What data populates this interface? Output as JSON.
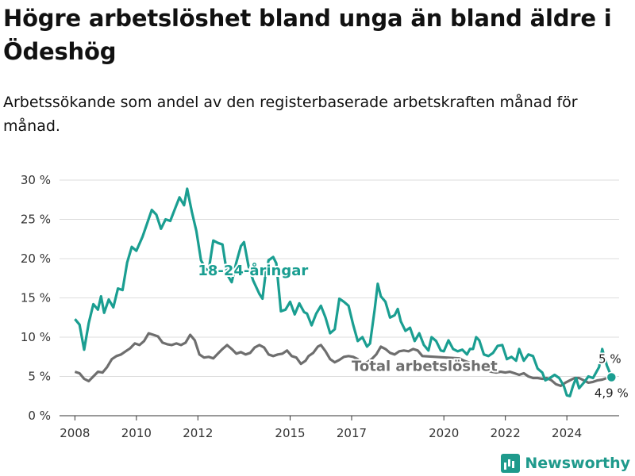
{
  "title": "Högre arbetslöshet bland unga än bland äldre i Ödeshög",
  "subtitle": "Arbetssökande som andel av den registerbaserade arbetskraften månad för månad.",
  "brand": "Newsworthy",
  "colors": {
    "young": "#1a9e91",
    "total": "#6e6e6e",
    "brand": "#1f9a8c"
  },
  "chart_data": {
    "type": "line",
    "ylim": [
      0,
      30
    ],
    "xlim": [
      2007.5,
      2025.7
    ],
    "yticks": [
      0,
      5,
      10,
      15,
      20,
      25,
      30
    ],
    "ytick_labels": [
      "0 %",
      "5 %",
      "10 %",
      "15 %",
      "20 %",
      "25 %",
      "30 %"
    ],
    "xticks": [
      2008,
      2010,
      2012,
      2015,
      2017,
      2020,
      2022,
      2024
    ],
    "xtick_labels": [
      "2008",
      "2010",
      "2012",
      "2015",
      "2017",
      "2020",
      "2022",
      "2024"
    ],
    "grid": true,
    "series": [
      {
        "name": "18-24-åringar",
        "points": [
          [
            2008.0,
            12.3
          ],
          [
            2008.15,
            11.6
          ],
          [
            2008.3,
            8.4
          ],
          [
            2008.45,
            11.8
          ],
          [
            2008.6,
            14.2
          ],
          [
            2008.75,
            13.5
          ],
          [
            2008.85,
            15.2
          ],
          [
            2008.95,
            13.1
          ],
          [
            2009.1,
            14.8
          ],
          [
            2009.25,
            13.8
          ],
          [
            2009.4,
            16.2
          ],
          [
            2009.55,
            16.0
          ],
          [
            2009.7,
            19.5
          ],
          [
            2009.85,
            21.5
          ],
          [
            2010.0,
            21.0
          ],
          [
            2010.2,
            22.8
          ],
          [
            2010.35,
            24.5
          ],
          [
            2010.5,
            26.2
          ],
          [
            2010.65,
            25.6
          ],
          [
            2010.8,
            23.8
          ],
          [
            2010.95,
            25.0
          ],
          [
            2011.1,
            24.8
          ],
          [
            2011.25,
            26.3
          ],
          [
            2011.4,
            27.8
          ],
          [
            2011.55,
            26.8
          ],
          [
            2011.65,
            28.9
          ],
          [
            2011.8,
            26.0
          ],
          [
            2011.95,
            23.5
          ],
          [
            2012.1,
            19.8
          ],
          [
            2012.25,
            18.7
          ],
          [
            2012.35,
            18.5
          ],
          [
            2012.5,
            22.3
          ],
          [
            2012.65,
            22.0
          ],
          [
            2012.8,
            21.8
          ],
          [
            2012.95,
            18.0
          ],
          [
            2013.1,
            17.0
          ],
          [
            2013.25,
            19.5
          ],
          [
            2013.4,
            21.6
          ],
          [
            2013.5,
            22.1
          ],
          [
            2013.65,
            19.0
          ],
          [
            2013.8,
            17.2
          ],
          [
            2014.0,
            15.5
          ],
          [
            2014.1,
            14.9
          ],
          [
            2014.2,
            18.0
          ],
          [
            2014.3,
            19.8
          ],
          [
            2014.45,
            20.2
          ],
          [
            2014.55,
            19.4
          ],
          [
            2014.7,
            13.3
          ],
          [
            2014.85,
            13.5
          ],
          [
            2015.0,
            14.5
          ],
          [
            2015.15,
            12.9
          ],
          [
            2015.3,
            14.3
          ],
          [
            2015.45,
            13.2
          ],
          [
            2015.55,
            13.0
          ],
          [
            2015.7,
            11.5
          ],
          [
            2015.85,
            13.0
          ],
          [
            2016.0,
            14.0
          ],
          [
            2016.15,
            12.5
          ],
          [
            2016.3,
            10.5
          ],
          [
            2016.45,
            11.0
          ],
          [
            2016.6,
            14.9
          ],
          [
            2016.75,
            14.5
          ],
          [
            2016.9,
            14.0
          ],
          [
            2017.05,
            11.6
          ],
          [
            2017.2,
            9.5
          ],
          [
            2017.35,
            10.0
          ],
          [
            2017.5,
            8.8
          ],
          [
            2017.6,
            9.2
          ],
          [
            2017.75,
            13.5
          ],
          [
            2017.85,
            16.8
          ],
          [
            2017.95,
            15.2
          ],
          [
            2018.1,
            14.5
          ],
          [
            2018.25,
            12.5
          ],
          [
            2018.4,
            12.8
          ],
          [
            2018.5,
            13.6
          ],
          [
            2018.6,
            12.0
          ],
          [
            2018.75,
            10.8
          ],
          [
            2018.9,
            11.2
          ],
          [
            2019.05,
            9.5
          ],
          [
            2019.2,
            10.5
          ],
          [
            2019.35,
            9.0
          ],
          [
            2019.5,
            8.3
          ],
          [
            2019.6,
            10.0
          ],
          [
            2019.75,
            9.5
          ],
          [
            2019.9,
            8.3
          ],
          [
            2020.0,
            8.2
          ],
          [
            2020.15,
            9.6
          ],
          [
            2020.3,
            8.5
          ],
          [
            2020.45,
            8.2
          ],
          [
            2020.6,
            8.4
          ],
          [
            2020.75,
            7.8
          ],
          [
            2020.85,
            8.5
          ],
          [
            2020.95,
            8.5
          ],
          [
            2021.05,
            10.0
          ],
          [
            2021.15,
            9.6
          ],
          [
            2021.3,
            7.8
          ],
          [
            2021.45,
            7.6
          ],
          [
            2021.6,
            8.0
          ],
          [
            2021.75,
            8.9
          ],
          [
            2021.9,
            9.0
          ],
          [
            2022.05,
            7.2
          ],
          [
            2022.2,
            7.5
          ],
          [
            2022.35,
            7.0
          ],
          [
            2022.45,
            8.5
          ],
          [
            2022.6,
            7.0
          ],
          [
            2022.75,
            7.8
          ],
          [
            2022.9,
            7.6
          ],
          [
            2023.05,
            6.0
          ],
          [
            2023.2,
            5.5
          ],
          [
            2023.3,
            4.5
          ],
          [
            2023.45,
            4.8
          ],
          [
            2023.6,
            5.2
          ],
          [
            2023.75,
            4.8
          ],
          [
            2023.9,
            3.8
          ],
          [
            2024.0,
            2.6
          ],
          [
            2024.1,
            2.5
          ],
          [
            2024.2,
            3.8
          ],
          [
            2024.3,
            4.8
          ],
          [
            2024.4,
            3.5
          ],
          [
            2024.55,
            4.2
          ],
          [
            2024.7,
            5.0
          ],
          [
            2024.85,
            4.8
          ],
          [
            2024.95,
            5.5
          ],
          [
            2025.05,
            6.2
          ],
          [
            2025.15,
            8.5
          ],
          [
            2025.3,
            6.4
          ],
          [
            2025.45,
            5.0
          ]
        ],
        "end_label": "5 %"
      },
      {
        "name": "Total arbetslöshet",
        "points": [
          [
            2008.0,
            5.6
          ],
          [
            2008.15,
            5.4
          ],
          [
            2008.3,
            4.7
          ],
          [
            2008.45,
            4.4
          ],
          [
            2008.6,
            5.0
          ],
          [
            2008.75,
            5.6
          ],
          [
            2008.9,
            5.5
          ],
          [
            2009.05,
            6.2
          ],
          [
            2009.2,
            7.2
          ],
          [
            2009.35,
            7.6
          ],
          [
            2009.5,
            7.8
          ],
          [
            2009.65,
            8.2
          ],
          [
            2009.8,
            8.6
          ],
          [
            2009.95,
            9.2
          ],
          [
            2010.1,
            9.0
          ],
          [
            2010.25,
            9.5
          ],
          [
            2010.4,
            10.5
          ],
          [
            2010.55,
            10.3
          ],
          [
            2010.7,
            10.1
          ],
          [
            2010.85,
            9.3
          ],
          [
            2011.0,
            9.1
          ],
          [
            2011.15,
            9.0
          ],
          [
            2011.3,
            9.2
          ],
          [
            2011.45,
            9.0
          ],
          [
            2011.6,
            9.3
          ],
          [
            2011.75,
            10.3
          ],
          [
            2011.9,
            9.6
          ],
          [
            2012.05,
            7.8
          ],
          [
            2012.2,
            7.4
          ],
          [
            2012.35,
            7.5
          ],
          [
            2012.5,
            7.3
          ],
          [
            2012.65,
            7.9
          ],
          [
            2012.8,
            8.5
          ],
          [
            2012.95,
            9.0
          ],
          [
            2013.1,
            8.5
          ],
          [
            2013.25,
            7.9
          ],
          [
            2013.4,
            8.1
          ],
          [
            2013.55,
            7.8
          ],
          [
            2013.7,
            8.0
          ],
          [
            2013.85,
            8.7
          ],
          [
            2014.0,
            9.0
          ],
          [
            2014.15,
            8.7
          ],
          [
            2014.3,
            7.8
          ],
          [
            2014.45,
            7.6
          ],
          [
            2014.6,
            7.8
          ],
          [
            2014.75,
            7.9
          ],
          [
            2014.9,
            8.3
          ],
          [
            2015.05,
            7.6
          ],
          [
            2015.2,
            7.4
          ],
          [
            2015.35,
            6.6
          ],
          [
            2015.5,
            7.0
          ],
          [
            2015.6,
            7.6
          ],
          [
            2015.75,
            8.0
          ],
          [
            2015.9,
            8.8
          ],
          [
            2016.0,
            9.0
          ],
          [
            2016.15,
            8.2
          ],
          [
            2016.3,
            7.2
          ],
          [
            2016.45,
            6.8
          ],
          [
            2016.6,
            7.1
          ],
          [
            2016.75,
            7.5
          ],
          [
            2016.9,
            7.6
          ],
          [
            2017.05,
            7.5
          ],
          [
            2017.2,
            7.2
          ],
          [
            2017.35,
            6.6
          ],
          [
            2017.5,
            6.8
          ],
          [
            2017.65,
            7.2
          ],
          [
            2017.8,
            7.8
          ],
          [
            2017.95,
            8.8
          ],
          [
            2018.1,
            8.5
          ],
          [
            2018.25,
            8.0
          ],
          [
            2018.4,
            7.8
          ],
          [
            2018.55,
            8.2
          ],
          [
            2018.7,
            8.3
          ],
          [
            2018.85,
            8.2
          ],
          [
            2019.0,
            8.5
          ],
          [
            2019.15,
            8.3
          ],
          [
            2019.3,
            7.6
          ],
          [
            2020.5,
            7.3
          ],
          [
            2020.65,
            7.0
          ],
          [
            2020.8,
            6.8
          ],
          [
            2020.95,
            6.5
          ],
          [
            2021.1,
            6.2
          ],
          [
            2021.25,
            6.0
          ],
          [
            2021.4,
            5.8
          ],
          [
            2021.55,
            5.6
          ],
          [
            2021.7,
            5.5
          ],
          [
            2021.85,
            5.6
          ],
          [
            2022.0,
            5.5
          ],
          [
            2022.15,
            5.6
          ],
          [
            2022.3,
            5.4
          ],
          [
            2022.45,
            5.2
          ],
          [
            2022.6,
            5.4
          ],
          [
            2022.75,
            5.0
          ],
          [
            2022.9,
            4.8
          ],
          [
            2023.05,
            4.8
          ],
          [
            2023.2,
            4.7
          ],
          [
            2023.35,
            4.8
          ],
          [
            2023.5,
            4.5
          ],
          [
            2023.65,
            4.0
          ],
          [
            2023.8,
            3.8
          ],
          [
            2023.95,
            4.2
          ],
          [
            2024.1,
            4.5
          ],
          [
            2024.25,
            4.8
          ],
          [
            2024.4,
            4.8
          ],
          [
            2024.55,
            4.5
          ],
          [
            2024.7,
            4.2
          ],
          [
            2024.85,
            4.3
          ],
          [
            2025.0,
            4.5
          ],
          [
            2025.15,
            4.6
          ],
          [
            2025.3,
            4.8
          ],
          [
            2025.45,
            4.9
          ]
        ],
        "end_label": "4,9 %"
      }
    ]
  }
}
